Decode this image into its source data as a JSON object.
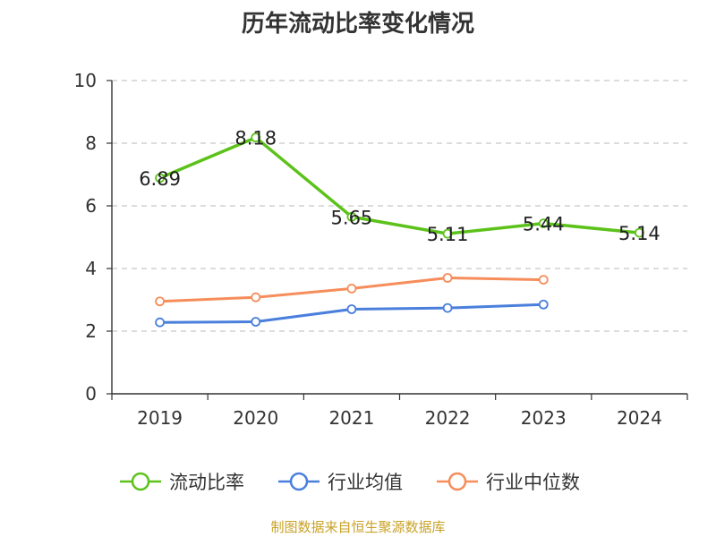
{
  "chart_data": {
    "type": "line",
    "title": "历年流动比率变化情况",
    "categories": [
      "2019",
      "2020",
      "2021",
      "2022",
      "2023",
      "2024"
    ],
    "ylim": [
      0,
      10
    ],
    "yticks": [
      0,
      2,
      4,
      6,
      8,
      10
    ],
    "grid": true,
    "legend_position": "bottom",
    "series": [
      {
        "name": "流动比率",
        "color": "#5cc21a",
        "values": [
          6.89,
          8.18,
          5.65,
          5.11,
          5.44,
          5.14
        ],
        "labels": [
          "6.89",
          "8.18",
          "5.65",
          "5.11",
          "5.44",
          "5.14"
        ]
      },
      {
        "name": "行业均值",
        "color": "#4a7fdc",
        "values": [
          2.28,
          2.3,
          2.7,
          2.74,
          2.85,
          null
        ]
      },
      {
        "name": "行业中位数",
        "color": "#f68d5a",
        "values": [
          2.95,
          3.08,
          3.36,
          3.7,
          3.64,
          null
        ]
      }
    ]
  },
  "source": "制图数据来自恒生聚源数据库"
}
